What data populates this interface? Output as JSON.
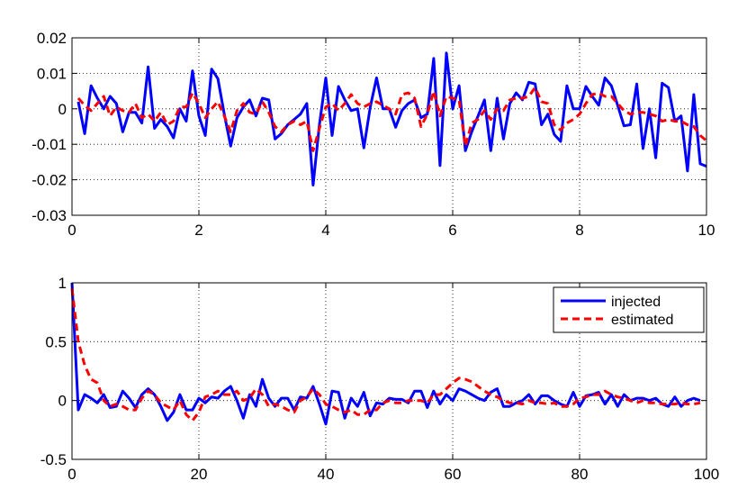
{
  "chart_data": [
    {
      "type": "line",
      "xlim": [
        0,
        10
      ],
      "ylim": [
        -0.03,
        0.02
      ],
      "xticks": [
        0,
        2,
        4,
        6,
        8,
        10
      ],
      "yticks": [
        -0.03,
        -0.02,
        -0.01,
        0,
        0.01,
        0.02
      ],
      "xtick_labels": [
        "0",
        "2",
        "4",
        "6",
        "8",
        "10"
      ],
      "ytick_labels": [
        "-0.03",
        "-0.02",
        "-0.01",
        "0",
        "0.01",
        "0.02"
      ],
      "grid": true,
      "series": [
        {
          "color": "#0000ff",
          "style": "solid",
          "x": [
            0.1,
            0.2,
            0.3,
            0.4,
            0.5,
            0.6,
            0.7,
            0.8,
            0.9,
            1.0,
            1.1,
            1.2,
            1.3,
            1.4,
            1.5,
            1.6,
            1.7,
            1.8,
            1.9,
            2.0,
            2.1,
            2.2,
            2.3,
            2.4,
            2.5,
            2.6,
            2.7,
            2.8,
            2.9,
            3.0,
            3.1,
            3.2,
            3.3,
            3.4,
            3.5,
            3.6,
            3.7,
            3.8,
            3.9,
            4.0,
            4.1,
            4.2,
            4.3,
            4.4,
            4.5,
            4.6,
            4.7,
            4.8,
            4.9,
            5.0,
            5.1,
            5.2,
            5.3,
            5.4,
            5.5,
            5.6,
            5.7,
            5.8,
            5.9,
            6.0,
            6.1,
            6.2,
            6.3,
            6.4,
            6.5,
            6.6,
            6.7,
            6.8,
            6.9,
            7.0,
            7.1,
            7.2,
            7.3,
            7.4,
            7.5,
            7.6,
            7.7,
            7.8,
            7.9,
            8.0,
            8.1,
            8.2,
            8.3,
            8.4,
            8.5,
            8.6,
            8.7,
            8.8,
            8.9,
            9.0,
            9.1,
            9.2,
            9.3,
            9.4,
            9.5,
            9.6,
            9.7,
            9.8,
            9.9,
            10.0
          ],
          "y": [
            0.002,
            -0.007,
            0.0065,
            0.003,
            0.0,
            0.0035,
            0.0015,
            -0.0065,
            -0.001,
            -0.001,
            -0.004,
            0.0118,
            -0.0055,
            -0.003,
            -0.005,
            -0.0082,
            0.0,
            -0.0035,
            0.0107,
            -0.002,
            -0.0075,
            0.0112,
            0.0085,
            -0.0015,
            -0.0105,
            -0.0025,
            0.0005,
            0.0025,
            -0.002,
            0.003,
            0.0025,
            -0.0085,
            -0.007,
            -0.0045,
            -0.003,
            -0.0015,
            0.0015,
            -0.0215,
            -0.0045,
            0.0087,
            -0.0075,
            0.0063,
            0.0025,
            -0.0005,
            0.0,
            -0.011,
            0.0005,
            0.0087,
            0.0,
            0.0,
            -0.0052,
            -0.0005,
            0.0015,
            0.0025,
            -0.0025,
            -0.0015,
            0.0142,
            -0.016,
            0.0157,
            0.0,
            0.0065,
            -0.0118,
            -0.0065,
            -0.002,
            0.0025,
            -0.0118,
            0.003,
            -0.0085,
            0.0015,
            0.0045,
            0.0025,
            0.0075,
            0.007,
            -0.0045,
            -0.0015,
            -0.0072,
            -0.0092,
            0.0065,
            0.0,
            0.0,
            0.0063,
            0.0035,
            0.001,
            0.0087,
            0.0065,
            0.001,
            -0.0048,
            -0.0045,
            0.007,
            -0.0112,
            0.0,
            -0.0138,
            0.0072,
            0.006,
            -0.0035,
            -0.002,
            -0.0175,
            0.004,
            -0.0155,
            -0.0162
          ]
        },
        {
          "color": "#ff0000",
          "style": "dashed",
          "x": [
            0.1,
            0.2,
            0.3,
            0.4,
            0.5,
            0.6,
            0.7,
            0.8,
            0.9,
            1.0,
            1.1,
            1.2,
            1.3,
            1.4,
            1.5,
            1.6,
            1.7,
            1.8,
            1.9,
            2.0,
            2.1,
            2.2,
            2.3,
            2.4,
            2.5,
            2.6,
            2.7,
            2.8,
            2.9,
            3.0,
            3.1,
            3.2,
            3.3,
            3.4,
            3.5,
            3.6,
            3.7,
            3.8,
            3.9,
            4.0,
            4.1,
            4.2,
            4.3,
            4.4,
            4.5,
            4.6,
            4.7,
            4.8,
            4.9,
            5.0,
            5.1,
            5.2,
            5.3,
            5.4,
            5.5,
            5.6,
            5.7,
            5.8,
            5.9,
            6.0,
            6.1,
            6.2,
            6.3,
            6.4,
            6.5,
            6.6,
            6.7,
            6.8,
            6.9,
            7.0,
            7.1,
            7.2,
            7.3,
            7.4,
            7.5,
            7.6,
            7.7,
            7.8,
            7.9,
            8.0,
            8.1,
            8.2,
            8.3,
            8.4,
            8.5,
            8.6,
            8.7,
            8.8,
            8.9,
            9.0,
            9.1,
            9.2,
            9.3,
            9.4,
            9.5,
            9.6,
            9.7,
            9.8,
            9.9,
            10.0
          ],
          "y": [
            0.003,
            0.001,
            -0.0005,
            0.0015,
            0.0035,
            -0.002,
            0.0005,
            -0.0005,
            -0.001,
            0.0015,
            -0.0025,
            -0.0015,
            -0.0035,
            -0.001,
            -0.0045,
            -0.0035,
            0.0005,
            0.0005,
            0.0045,
            0.0015,
            -0.0025,
            0.0,
            0.002,
            -0.002,
            -0.0065,
            -0.0005,
            0.0015,
            -0.001,
            -0.0015,
            0.002,
            -0.001,
            -0.005,
            -0.0065,
            -0.0045,
            -0.0035,
            -0.0045,
            -0.0035,
            -0.0118,
            -0.0055,
            0.0005,
            0.0015,
            -0.0005,
            0.0015,
            0.004,
            0.0015,
            0.0005,
            0.0015,
            0.002,
            0.001,
            0.0,
            -0.0015,
            0.004,
            0.0045,
            0.003,
            -0.005,
            -0.0015,
            0.005,
            -0.002,
            0.0035,
            0.003,
            0.0025,
            -0.0105,
            -0.004,
            -0.003,
            -0.0005,
            -0.003,
            0.0,
            -0.0005,
            0.0025,
            0.003,
            0.003,
            0.0035,
            0.006,
            0.002,
            0.0015,
            -0.0045,
            -0.006,
            -0.004,
            -0.003,
            -0.0015,
            0.0015,
            0.004,
            0.0045,
            0.0035,
            0.0035,
            0.0015,
            -0.0005,
            -0.0015,
            -0.001,
            -0.001,
            -0.0015,
            -0.002,
            -0.0035,
            -0.003,
            -0.0035,
            -0.0035,
            -0.0045,
            -0.005,
            -0.0075,
            -0.009
          ]
        }
      ]
    },
    {
      "type": "line",
      "xlim": [
        0,
        100
      ],
      "ylim": [
        -0.5,
        1
      ],
      "xticks": [
        0,
        20,
        40,
        60,
        80,
        100
      ],
      "yticks": [
        -0.5,
        0,
        0.5,
        1
      ],
      "xtick_labels": [
        "0",
        "20",
        "40",
        "60",
        "80",
        "100"
      ],
      "ytick_labels": [
        "-0.5",
        "0",
        "0.5",
        "1"
      ],
      "grid": true,
      "legend": "top-right",
      "series": [
        {
          "name": "injected",
          "color": "#0000ff",
          "style": "solid",
          "x": [
            0,
            1,
            2,
            3,
            4,
            5,
            6,
            7,
            8,
            9,
            10,
            11,
            12,
            13,
            14,
            15,
            16,
            17,
            18,
            19,
            20,
            21,
            22,
            23,
            24,
            25,
            26,
            27,
            28,
            29,
            30,
            31,
            32,
            33,
            34,
            35,
            36,
            37,
            38,
            39,
            40,
            41,
            42,
            43,
            44,
            45,
            46,
            47,
            48,
            49,
            50,
            51,
            52,
            53,
            54,
            55,
            56,
            57,
            58,
            59,
            60,
            61,
            62,
            63,
            64,
            65,
            66,
            67,
            68,
            69,
            70,
            71,
            72,
            73,
            74,
            75,
            76,
            77,
            78,
            79,
            80,
            81,
            82,
            83,
            84,
            85,
            86,
            87,
            88,
            89,
            90,
            91,
            92,
            93,
            94,
            95,
            96,
            97,
            98,
            99
          ],
          "y": [
            1.0,
            -0.08,
            0.05,
            0.02,
            -0.02,
            0.05,
            -0.06,
            -0.05,
            0.08,
            0.02,
            -0.06,
            0.05,
            0.1,
            0.05,
            -0.05,
            -0.17,
            -0.1,
            0.05,
            -0.08,
            -0.08,
            0.02,
            -0.02,
            0.03,
            0.02,
            0.08,
            0.12,
            0.0,
            -0.15,
            0.05,
            -0.05,
            0.18,
            0.02,
            -0.05,
            0.02,
            0.02,
            -0.08,
            0.03,
            0.02,
            0.12,
            -0.03,
            -0.2,
            0.08,
            0.07,
            -0.15,
            0.02,
            -0.05,
            0.07,
            -0.13,
            -0.02,
            -0.03,
            0.02,
            0.01,
            0.01,
            -0.02,
            0.08,
            0.08,
            -0.06,
            0.08,
            -0.03,
            0.05,
            0.0,
            0.1,
            0.08,
            0.05,
            0.02,
            0.0,
            0.07,
            0.1,
            -0.05,
            -0.05,
            -0.02,
            0.0,
            0.05,
            -0.03,
            0.04,
            0.04,
            0.0,
            -0.03,
            -0.05,
            0.07,
            -0.05,
            0.04,
            0.05,
            0.07,
            -0.03,
            0.05,
            -0.05,
            0.05,
            0.0,
            0.02,
            0.02,
            0.0,
            0.02,
            -0.03,
            -0.05,
            0.03,
            -0.05,
            0.0,
            0.02,
            0.0
          ]
        },
        {
          "name": "estimated",
          "color": "#ff0000",
          "style": "dashed",
          "x": [
            0,
            1,
            2,
            3,
            4,
            5,
            6,
            7,
            8,
            9,
            10,
            11,
            12,
            13,
            14,
            15,
            16,
            17,
            18,
            19,
            20,
            21,
            22,
            23,
            24,
            25,
            26,
            27,
            28,
            29,
            30,
            31,
            32,
            33,
            34,
            35,
            36,
            37,
            38,
            39,
            40,
            41,
            42,
            43,
            44,
            45,
            46,
            47,
            48,
            49,
            50,
            51,
            52,
            53,
            54,
            55,
            56,
            57,
            58,
            59,
            60,
            61,
            62,
            63,
            64,
            65,
            66,
            67,
            68,
            69,
            70,
            71,
            72,
            73,
            74,
            75,
            76,
            77,
            78,
            79,
            80,
            81,
            82,
            83,
            84,
            85,
            86,
            87,
            88,
            89,
            90,
            91,
            92,
            93,
            94,
            95,
            96,
            97,
            98,
            99
          ],
          "y": [
            0.95,
            0.5,
            0.3,
            0.18,
            0.15,
            0.0,
            -0.05,
            -0.03,
            -0.05,
            -0.08,
            -0.08,
            0.02,
            0.08,
            0.05,
            -0.02,
            -0.05,
            -0.08,
            0.0,
            -0.12,
            -0.17,
            -0.1,
            0.03,
            0.05,
            0.08,
            0.05,
            0.05,
            0.08,
            0.0,
            0.02,
            0.1,
            0.05,
            -0.05,
            -0.03,
            -0.05,
            -0.08,
            -0.1,
            0.0,
            0.03,
            0.1,
            0.05,
            -0.03,
            -0.05,
            -0.08,
            -0.1,
            -0.08,
            -0.12,
            -0.12,
            -0.08,
            -0.08,
            -0.02,
            0.0,
            -0.02,
            -0.02,
            0.0,
            0.0,
            0.0,
            -0.02,
            0.05,
            0.05,
            0.1,
            0.15,
            0.19,
            0.18,
            0.16,
            0.12,
            0.08,
            0.05,
            0.03,
            0.0,
            -0.02,
            -0.02,
            -0.03,
            0.0,
            -0.02,
            -0.02,
            -0.03,
            -0.02,
            -0.05,
            -0.05,
            -0.03,
            0.02,
            0.03,
            0.05,
            0.05,
            0.08,
            0.05,
            0.03,
            0.02,
            0.0,
            -0.02,
            0.0,
            -0.02,
            -0.02,
            -0.03,
            -0.03,
            -0.03,
            -0.02,
            -0.03,
            -0.03,
            -0.02
          ]
        }
      ]
    }
  ]
}
